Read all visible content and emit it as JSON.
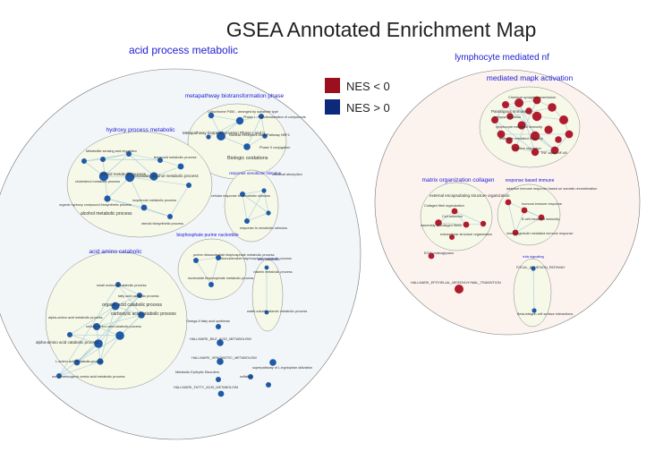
{
  "title": "GSEA Annotated Enrichment Map",
  "legend": [
    {
      "label": "NES < 0",
      "color": "#9b0f1e"
    },
    {
      "label": "NES > 0",
      "color": "#0d2a7a"
    }
  ],
  "colors": {
    "neg_node": "#b01c2e",
    "pos_node": "#1f5aa8",
    "cluster_label": "#2020d0",
    "left_bg": "#f2f6f8",
    "right_bg": "#fcf3ef",
    "sub_bg": "#f6f8e8"
  },
  "groups": {
    "left": "acid process metabolic",
    "right": "lymphocyte mediated nf"
  },
  "clusters": {
    "metapathway": "metapathway biotransformation phase",
    "hydroxy": "hydroxy process metabolic",
    "xenobiotic": "response xenobiotic stimulus",
    "bisphosphate": "bisphosphate purine nucleotide",
    "amino": "acid amino catabolic",
    "catabolic_small": "acid catabolic",
    "mapk": "mediated mapk activation",
    "collagen": "matrix organization collagen",
    "immune": "response based immune",
    "tnfa": "tnfa signaling"
  },
  "labels": {
    "cyp": "Cytochrome P450 - arranged by substrate type",
    "phase1": "Phase I - Functionalization of compounds",
    "metapathway_bio": "Metapathway biotransformation Phase I and II",
    "nuclear_receptors": "Nuclear Receptors Meta-Pathway NRF2",
    "biologic_oxidations": "Biologic oxidations",
    "phase2": "Phase II conjugation",
    "oxidation_bile": "Oxidation by cytochrome P450",
    "xeno_process": "response to xenobiotic stimulus",
    "intestinal": "intestinal absorption",
    "metabolite": "Metabolite sensing and regulation",
    "steroid_hydroxy": "steroid metabolic process",
    "secondary": "secondary alcohol metabolic process",
    "cholesterol": "cholesterol metabolic process",
    "organic_hydroxy": "organic hydroxy compound biosynthetic process",
    "alcohol": "alcohol metabolic process",
    "isoprenoid": "isoprenoid metabolic process",
    "terpenoid": "terpenoid metabolic process",
    "steroid_bio": "steroid biosynthetic process",
    "cellular_resp": "cellular response to xenobiotic stimulus",
    "resp_xeno": "response to xenobiotic stimulus",
    "purine": "purine ribonucleotide bisphosphate metabolic process",
    "nucleoside": "nucleoside bisphosphate metabolic process",
    "ribonucleoside": "ribonucleoside bisphosphate metabolic process",
    "acid_catabolic": "acid catabolic process",
    "vitamin": "vitamin metabolic process",
    "water_soluble": "water-soluble vitamin metabolic process",
    "small_mol": "small molecule catabolic process",
    "fatty_catab": "fatty acid catabolic process",
    "organic_acid_cat": "organic acid catabolic process",
    "carboxylic": "carboxylic acid catabolic process",
    "cellular_amino": "cellular amino acid catabolic process",
    "alpha_amino": "alpha-amino acid metabolic process",
    "alpha_catab": "alpha-amino acid catabolic process",
    "lamino": "L-amino acid metabolic process",
    "nonprotein": "non-proteinogenic amino acid metabolic process",
    "omega": "Omega-9 fatty acid synthesis",
    "bile_acid": "HALLMARK_BILE_ACID_METABOLISM",
    "xeno_hallmark": "HALLMARK_XENOBIOTIC_METABOLISM",
    "metabolic_epi": "Metabolic Epileptic Disorders",
    "sulfation": "sulfation",
    "superpathway": "superpathway of L-tryptophan utilization",
    "fatty_hallmark": "HALLMARK_FATTY_ACID_METABOLISM",
    "chemical_syn": "Chemical synaptic transmission",
    "paralogous": "Paralogous immune",
    "immune_response": "immune response",
    "lymphocyte_med": "lymphocyte mediated immunity",
    "leukocyte": "leukocyte mediated immunity",
    "positive_reg": "positive regulation",
    "tnf_nfkb": "TNF-alpha NF-kB",
    "external_enc": "external encapsulating structure organization",
    "collagen_fibril": "Collagen fibril organization",
    "cell_adhesion": "Cell adhesion",
    "extracellular": "extracellular structure organization",
    "assembly": "Assembly of collagen fibrils",
    "adaptive": "adaptive immune response based on somatic recombination",
    "humoral": "humoral immune response",
    "b_cell": "B cell mediated immunity",
    "immune_mediated": "immunoglobulin mediated immune response",
    "ecm": "ECM proteoglycans",
    "emt": "HALLMARK_EPITHELIAL_MESENCHYMAL_TRANSITION",
    "focal": "FOCAL_ADHESION_PATHWAY",
    "beta_integrin": "Beta-integrin cell surface interactions"
  }
}
